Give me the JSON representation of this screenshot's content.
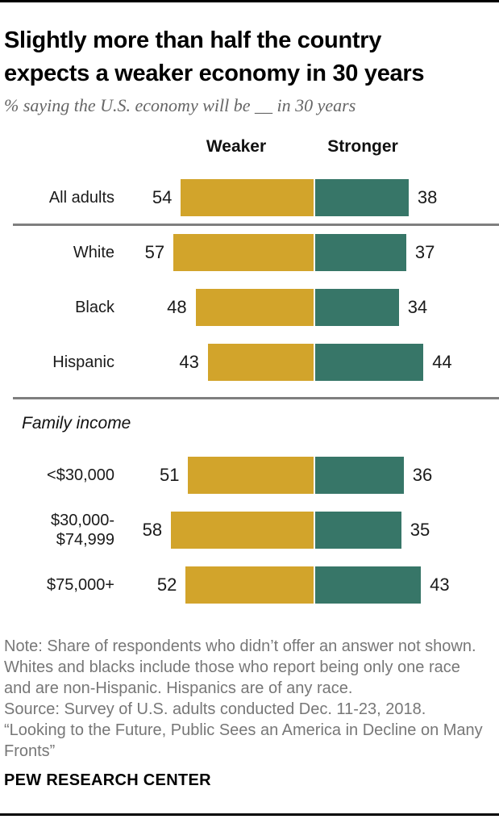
{
  "header": {
    "title": "Slightly more than half the country\nexpects a weaker economy in 30 years",
    "subtitle": "% saying the U.S. economy will be __ in 30 years"
  },
  "chart_data": {
    "type": "bar",
    "subtype": "diverging-horizontal",
    "title": "Slightly more than half the country expects a weaker economy in 30 years",
    "unit": "percent of U.S. adults",
    "legend_position": "top",
    "series": [
      {
        "name": "Weaker",
        "color": "#D2A42B"
      },
      {
        "name": "Stronger",
        "color": "#377668"
      }
    ],
    "rows": [
      {
        "label": "All adults",
        "weaker": 54,
        "stronger": 38,
        "group": "all"
      },
      {
        "label": "White",
        "weaker": 57,
        "stronger": 37,
        "group": "race"
      },
      {
        "label": "Black",
        "weaker": 48,
        "stronger": 34,
        "group": "race"
      },
      {
        "label": "Hispanic",
        "weaker": 43,
        "stronger": 44,
        "group": "race"
      },
      {
        "label": "<$30,000",
        "weaker": 51,
        "stronger": 36,
        "group": "income"
      },
      {
        "label": "$30,000-\n$74,999",
        "weaker": 58,
        "stronger": 35,
        "group": "income"
      },
      {
        "label": "$75,000+",
        "weaker": 52,
        "stronger": 43,
        "group": "income"
      }
    ],
    "section_label": "Family income"
  },
  "footer": {
    "note": "Note: Share of respondents who didn’t offer an answer not shown.\nWhites and blacks include those who report being only one race\nand are non-Hispanic. Hispanics are of any race.",
    "source": "Source: Survey of U.S. adults conducted Dec. 11-23, 2018.",
    "quote": "“Looking to the Future, Public Sees an America in Decline on Many\nFronts”",
    "brand": "PEW RESEARCH CENTER"
  }
}
